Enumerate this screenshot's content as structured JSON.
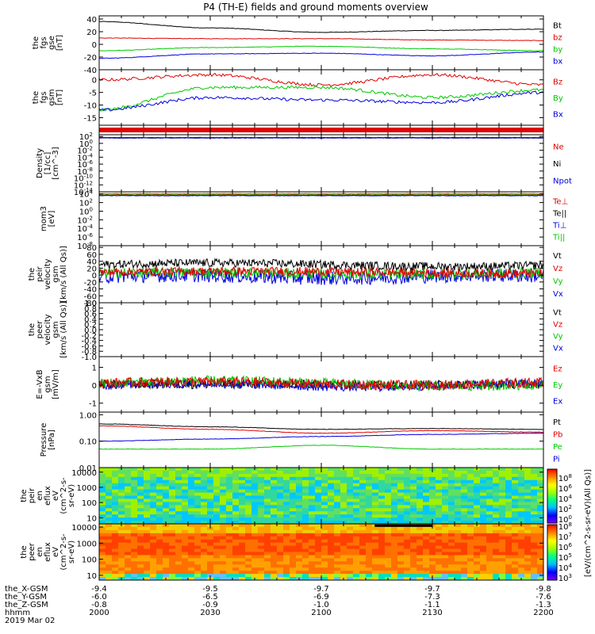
{
  "title": "P4 (TH-E) fields and ground moments overview",
  "colors": {
    "black": "#000000",
    "red": "#e00000",
    "green": "#00c800",
    "blue": "#0000dd",
    "yellow": "#b4b400",
    "cyan": "#00b4b4"
  },
  "panels": [
    {
      "ylabel": [
        "the",
        "fgs",
        "gse",
        "[nT]"
      ],
      "ticks": [
        "40",
        "20",
        "0",
        "-20",
        "-40"
      ],
      "tickvals": [
        40,
        20,
        0,
        -20,
        -40
      ],
      "ylim": [
        -40,
        45
      ],
      "scale": "linear",
      "legend": [
        {
          "t": "Bt",
          "c": "black"
        },
        {
          "t": "bz",
          "c": "red"
        },
        {
          "t": "by",
          "c": "green"
        },
        {
          "t": "bx",
          "c": "blue"
        }
      ]
    },
    {
      "ylabel": [
        "the",
        "fgs",
        "gsm",
        "[nT]"
      ],
      "ticks": [
        "0",
        "-5",
        "-10",
        "-15"
      ],
      "tickvals": [
        0,
        -5,
        -10,
        -15
      ],
      "ylim": [
        -18,
        4
      ],
      "scale": "linear",
      "legend": [
        {
          "t": "Bz",
          "c": "red"
        },
        {
          "t": "By",
          "c": "green"
        },
        {
          "t": "Bx",
          "c": "blue"
        }
      ]
    },
    {
      "ylabel": [],
      "ticks": [],
      "tickvals": [],
      "ylim": [
        0,
        1
      ],
      "scale": "linear",
      "legend": []
    },
    {
      "ylabel": [
        "Density",
        "[1/cc]",
        "[cm^-3]"
      ],
      "ticks": [
        "10^2",
        "10^0",
        "10^-2",
        "10^-4",
        "10^-6",
        "10^-8",
        "10^-10",
        "10^-12",
        "10^-14"
      ],
      "tickvals": [
        2,
        0,
        -2,
        -4,
        -6,
        -8,
        -10,
        -12,
        -14
      ],
      "ylim": [
        -14,
        2.5
      ],
      "scale": "log",
      "legend": [
        {
          "t": "Ne",
          "c": "red"
        },
        {
          "t": "Ni",
          "c": "black"
        },
        {
          "t": "Npot",
          "c": "blue"
        }
      ]
    },
    {
      "ylabel": [
        "mom3",
        "[eV]"
      ],
      "ticks": [
        "10^4",
        "10^2",
        "10^0",
        "10^-2",
        "10^-4",
        "10^-6",
        "10^-8"
      ],
      "tickvals": [
        4,
        2,
        0,
        -2,
        -4,
        -6,
        -8
      ],
      "ylim": [
        -8,
        4.5
      ],
      "scale": "log",
      "legend": [
        {
          "t": "Te⊥",
          "c": "red"
        },
        {
          "t": "Te||",
          "c": "black"
        },
        {
          "t": "Ti⊥",
          "c": "blue"
        },
        {
          "t": "Ti||",
          "c": "green"
        }
      ]
    },
    {
      "ylabel": [
        "the",
        "peir",
        "velocity",
        "gsm",
        "[km/s (All Qs)]"
      ],
      "ticks": [
        "80",
        "60",
        "40",
        "20",
        "0",
        "-20",
        "-40",
        "-60",
        "-80"
      ],
      "tickvals": [
        80,
        60,
        40,
        20,
        0,
        -20,
        -40,
        -60,
        -80
      ],
      "ylim": [
        -80,
        85
      ],
      "scale": "linear",
      "legend": [
        {
          "t": "Vt",
          "c": "black"
        },
        {
          "t": "Vz",
          "c": "red"
        },
        {
          "t": "Vy",
          "c": "green"
        },
        {
          "t": "Vx",
          "c": "blue"
        }
      ]
    },
    {
      "ylabel": [
        "the",
        "peer",
        "velocity",
        "gsm",
        "[km/s (All Qs)]"
      ],
      "ticks": [
        "1.0",
        "0.8",
        "0.6",
        "0.4",
        "0.2",
        "0.0",
        "-0.2",
        "-0.4",
        "-0.6",
        "-0.8",
        "-1.0"
      ],
      "tickvals": [
        1,
        0.8,
        0.6,
        0.4,
        0.2,
        0,
        -0.2,
        -0.4,
        -0.6,
        -0.8,
        -1
      ],
      "ylim": [
        -1,
        1
      ],
      "scale": "linear",
      "legend": [
        {
          "t": "Vt",
          "c": "black"
        },
        {
          "t": "Vz",
          "c": "red"
        },
        {
          "t": "Vy",
          "c": "green"
        },
        {
          "t": "Vx",
          "c": "blue"
        }
      ]
    },
    {
      "ylabel": [
        "E=-VxB",
        "gsm",
        "[mV/m]"
      ],
      "ticks": [
        "1",
        "0",
        "-1"
      ],
      "tickvals": [
        1,
        0,
        -1
      ],
      "ylim": [
        -1.5,
        1.6
      ],
      "scale": "linear",
      "legend": [
        {
          "t": "Ez",
          "c": "red"
        },
        {
          "t": "Ey",
          "c": "green"
        },
        {
          "t": "Ex",
          "c": "blue"
        }
      ]
    },
    {
      "ylabel": [
        "Pressure",
        "[nPa]"
      ],
      "ticks": [
        "1.00",
        "0.10",
        "0.01"
      ],
      "tickvals": [
        0,
        -1,
        -2
      ],
      "ylim": [
        -2,
        0.1
      ],
      "scale": "log",
      "legend": [
        {
          "t": "Pt",
          "c": "black"
        },
        {
          "t": "Pb",
          "c": "red"
        },
        {
          "t": "Pe",
          "c": "green"
        },
        {
          "t": "Pi",
          "c": "blue"
        }
      ]
    },
    {
      "ylabel": [
        "the",
        "peir",
        "en",
        "eflux",
        "eV",
        "(cm^2-s-",
        "sr-eV)"
      ],
      "ticks": [
        "10000",
        "1000",
        "100",
        "10"
      ],
      "tickvals": [
        4,
        3,
        2,
        1
      ],
      "ylim": [
        0.6,
        4.3
      ],
      "scale": "log",
      "legend": []
    },
    {
      "ylabel": [
        "the",
        "peer",
        "en",
        "eflux",
        "eV",
        "(cm^2-s-",
        "sr-eV)"
      ],
      "ticks": [
        "10000",
        "1000",
        "100",
        "10"
      ],
      "tickvals": [
        4,
        3,
        2,
        1
      ],
      "ylim": [
        0.7,
        4.2
      ],
      "scale": "log",
      "legend": []
    }
  ],
  "colorbar": {
    "label": "[eV/(cm^2-s-sr-eV)]",
    "label2": "[eV/(cm^2-s-sr-eV)(All Qs)]",
    "ticks1": [
      "10^8",
      "10^6",
      "10^4",
      "10^2",
      "10^0"
    ],
    "ticks2": [
      "10^8",
      "10^7",
      "10^6",
      "10^5",
      "10^4",
      "10^3"
    ]
  },
  "xaxis": {
    "rows": [
      {
        "label": "the_X-GSM",
        "values": [
          "-9.4",
          "-9.5",
          "-9.7",
          "-9.7",
          "-9.8"
        ]
      },
      {
        "label": "the_Y-GSM",
        "values": [
          "-6.0",
          "-6.5",
          "-6.9",
          "-7.3",
          "-7.6"
        ]
      },
      {
        "label": "the_Z-GSM",
        "values": [
          "-0.8",
          "-0.9",
          "-1.0",
          "-1.1",
          "-1.3"
        ]
      },
      {
        "label": "hhmm",
        "values": [
          "2000",
          "2030",
          "2100",
          "2130",
          "2200"
        ]
      }
    ],
    "date": "2019 Mar 02"
  },
  "chart_data": {
    "type": "line",
    "title": "P4 (TH-E) fields and ground moments overview",
    "x": [
      "2000",
      "2030",
      "2100",
      "2130",
      "2200"
    ],
    "panels": [
      {
        "ylabel": "the fgs gse [nT]",
        "series": [
          {
            "name": "Bt",
            "values": [
              36,
              26,
              19,
              22,
              24
            ]
          },
          {
            "name": "bz",
            "values": [
              10,
              9,
              9,
              7,
              6
            ]
          },
          {
            "name": "by",
            "values": [
              -10,
              -5,
              -3,
              -7,
              -10
            ]
          },
          {
            "name": "bx",
            "values": [
              -22,
              -15,
              -14,
              -18,
              -12
            ]
          }
        ]
      },
      {
        "ylabel": "the fgs gsm [nT]",
        "series": [
          {
            "name": "Bz",
            "values": [
              0,
              2,
              -2,
              2,
              -2
            ]
          },
          {
            "name": "By",
            "values": [
              -12,
              -3,
              -3,
              -7,
              -4
            ]
          },
          {
            "name": "Bx",
            "values": [
              -12,
              -7,
              -8,
              -9,
              -5
            ]
          }
        ]
      },
      {
        "ylabel": "Pressure [nPa]",
        "series": [
          {
            "name": "Pt",
            "values": [
              0.45,
              0.35,
              0.28,
              0.3,
              0.28
            ]
          },
          {
            "name": "Pb",
            "values": [
              0.38,
              0.28,
              0.2,
              0.25,
              0.22
            ]
          },
          {
            "name": "Pe",
            "values": [
              0.05,
              0.05,
              0.07,
              0.05,
              0.05
            ]
          },
          {
            "name": "Pi",
            "values": [
              0.1,
              0.12,
              0.15,
              0.18,
              0.2
            ]
          }
        ]
      }
    ]
  }
}
